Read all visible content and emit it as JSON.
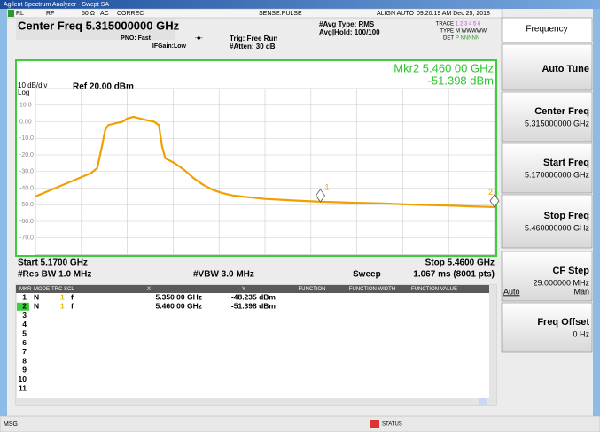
{
  "window_title": "Agilent Spectrum Analyzer - Swept SA",
  "status_bar": [
    "RL",
    "RF",
    "50 Ω",
    "AC",
    "CORREC",
    "SENSE:PULSE",
    "ALIGN AUTO",
    "09:20:19 AM Dec 25, 2018"
  ],
  "header": {
    "center_freq": "Center Freq 5.315000000 GHz",
    "pno": "PNO: Fast",
    "ifgain": "IFGain:Low",
    "trig": "Trig: Free Run",
    "atten": "#Atten: 30 dB",
    "avg_type": "#Avg Type: RMS",
    "avg_hold": "Avg|Hold: 100/100",
    "trace_label": "TRACE",
    "trace_digits": "1 2 3 4 5 6",
    "type_label": "TYPE",
    "type_value": "M WWWWW",
    "det_label": "DET",
    "det_value": "P NNNNN"
  },
  "plot": {
    "scale": "10 dB/div",
    "log": "Log",
    "ref": "Ref 20.00 dBm",
    "marker_freq": "Mkr2 5.460 00 GHz",
    "marker_level": "-51.398 dBm",
    "xlim": [
      5.17,
      5.46
    ],
    "ylim": [
      -80,
      20
    ],
    "yticks": [
      {
        "value": 10,
        "label": "10.0"
      },
      {
        "value": 0,
        "label": "0.00"
      },
      {
        "value": -10,
        "label": "-10.0"
      },
      {
        "value": -20,
        "label": "-20.0"
      },
      {
        "value": -30,
        "label": "-30.0"
      },
      {
        "value": -40,
        "label": "-40.0"
      },
      {
        "value": -50,
        "label": "-50.0"
      },
      {
        "value": -60,
        "label": "-60.0"
      },
      {
        "value": -70,
        "label": "-70.0"
      }
    ],
    "trace": {
      "color": "#f0a000",
      "x": [
        5.17,
        5.175,
        5.18,
        5.185,
        5.19,
        5.195,
        5.2,
        5.205,
        5.209,
        5.212,
        5.214,
        5.216,
        5.22,
        5.225,
        5.228,
        5.232,
        5.236,
        5.24,
        5.245,
        5.248,
        5.25,
        5.252,
        5.258,
        5.264,
        5.27,
        5.276,
        5.282,
        5.288,
        5.295,
        5.305,
        5.315,
        5.325,
        5.335,
        5.35,
        5.37,
        5.39,
        5.41,
        5.43,
        5.445,
        5.46
      ],
      "y": [
        -45,
        -43,
        -41,
        -39,
        -37,
        -35,
        -33,
        -31,
        -28,
        -15,
        -5,
        -2,
        -1,
        0,
        2,
        3,
        2,
        1,
        0,
        -2,
        -15,
        -22,
        -25,
        -29,
        -34,
        -38,
        -41,
        -43,
        -44.5,
        -45.5,
        -46.5,
        -47,
        -47.5,
        -48.2,
        -48.8,
        -49.3,
        -50,
        -50.5,
        -51,
        -51.4
      ]
    },
    "markers": [
      {
        "label": "1",
        "x": 5.35,
        "y": -48.235
      },
      {
        "label": "2",
        "x": 5.46,
        "y": -51.398
      }
    ],
    "start": "Start 5.1700 GHz",
    "stop": "Stop 5.4600 GHz",
    "res_bw": "#Res BW 1.0 MHz",
    "vbw": "#VBW 3.0 MHz",
    "sweep": "Sweep",
    "sweep_value": "1.067 ms (8001 pts)"
  },
  "marker_table": {
    "columns": [
      "MKR",
      "MODE",
      "TRC",
      "SCL",
      "X",
      "Y",
      "FUNCTION",
      "FUNCTION WIDTH",
      "FUNCTION VALUE"
    ],
    "rows": [
      [
        "1",
        "N",
        "1",
        "f",
        "5.350 00 GHz",
        "-48.235 dBm"
      ],
      [
        "2",
        "N",
        "1",
        "f",
        "5.460 00 GHz",
        "-51.398 dBm"
      ],
      [
        "3"
      ],
      [
        "4"
      ],
      [
        "5"
      ],
      [
        "6"
      ],
      [
        "7"
      ],
      [
        "8"
      ],
      [
        "9"
      ],
      [
        "10"
      ],
      [
        "11"
      ]
    ]
  },
  "softkeys": [
    {
      "label": "Frequency"
    },
    {
      "label": "Auto Tune"
    },
    {
      "label": "Center Freq",
      "value": "5.315000000 GHz"
    },
    {
      "label": "Start Freq",
      "value": "5.170000000 GHz"
    },
    {
      "label": "Stop Freq",
      "value": "5.460000000 GHz"
    },
    {
      "label": "CF Step",
      "value": "29.000000 MHz",
      "options": [
        "Auto",
        "Man"
      ]
    },
    {
      "label": "Freq Offset",
      "value": "0 Hz"
    }
  ],
  "msg": "MSG",
  "status": "STATUS"
}
